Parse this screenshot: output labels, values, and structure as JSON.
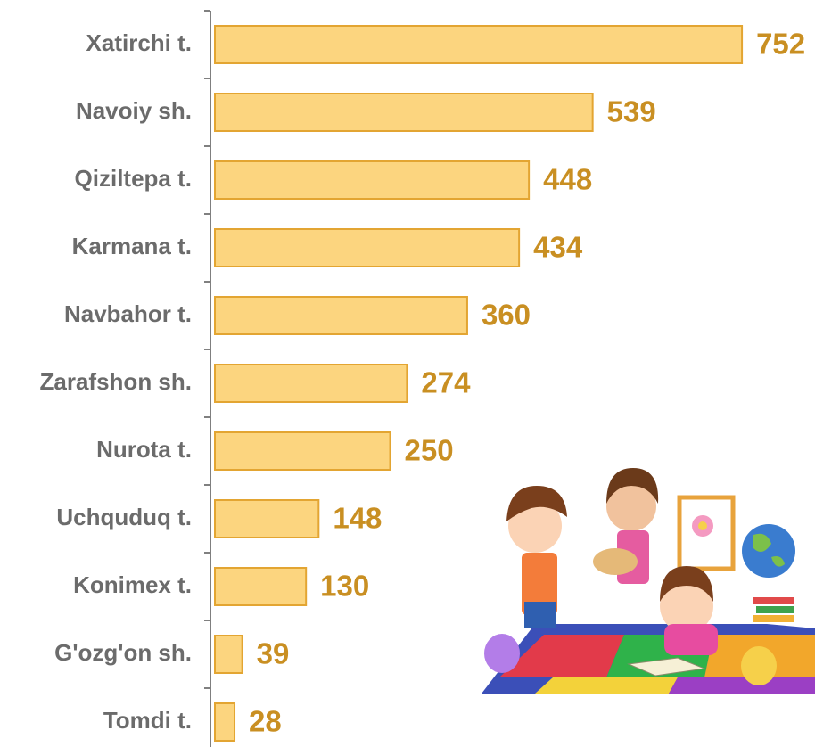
{
  "chart_data": {
    "type": "bar",
    "orientation": "horizontal",
    "categories": [
      "Xatirchi t.",
      "Navoiy sh.",
      "Qiziltepa t.",
      "Karmana t.",
      "Navbahor t.",
      "Zarafshon sh.",
      "Nurota t.",
      "Uchquduq t.",
      "Konimex t.",
      "G'ozg'on sh.",
      "Tomdi t."
    ],
    "values": [
      752,
      539,
      448,
      434,
      360,
      274,
      250,
      148,
      130,
      39,
      28
    ],
    "color": "#fcd57f"
  }
}
